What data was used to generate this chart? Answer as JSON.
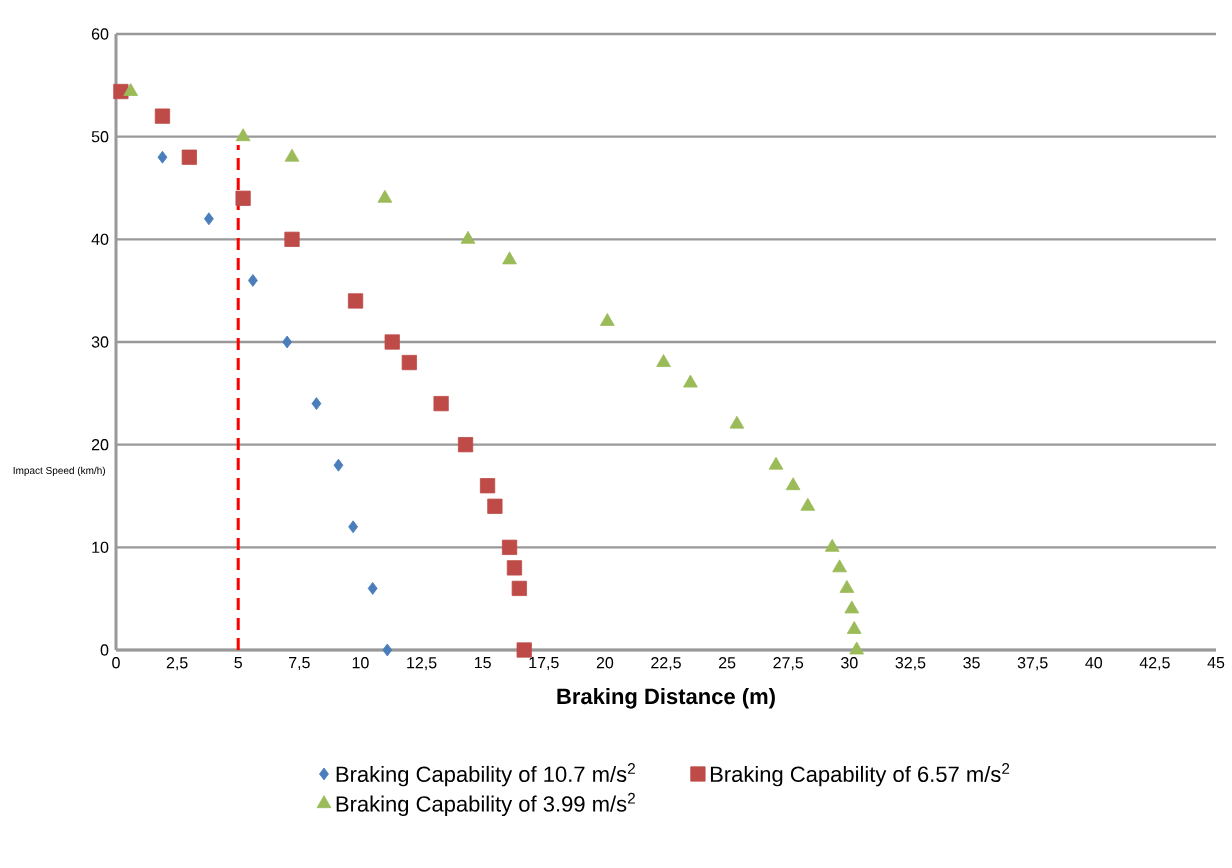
{
  "chart_data": {
    "type": "scatter",
    "xlabel": "Braking Distance (m)",
    "ylabel": "Impact Speed (km/h)",
    "xlim": [
      0,
      45
    ],
    "ylim": [
      0,
      60
    ],
    "xticks": [
      0,
      {
        "value": 2.5,
        "label": "2,5"
      },
      5,
      {
        "value": 7.5,
        "label": "7,5"
      },
      10,
      {
        "value": 12.5,
        "label": "12,5"
      },
      15,
      {
        "value": 17.5,
        "label": "17,5"
      },
      20,
      {
        "value": 22.5,
        "label": "22,5"
      },
      25,
      {
        "value": 27.5,
        "label": "27,5"
      },
      30,
      {
        "value": 32.5,
        "label": "32,5"
      },
      35,
      {
        "value": 37.5,
        "label": "37,5"
      },
      40,
      {
        "value": 42.5,
        "label": "42,5"
      },
      45
    ],
    "yticks": [
      0,
      10,
      20,
      30,
      40,
      50,
      60
    ],
    "grid": "y",
    "legend": "bottom",
    "series": [
      {
        "name": "Braking Capability of 10.7 m/s$^{2}$",
        "color": "#4a7ebb",
        "marker": "diamond",
        "x": [
          1.9,
          3.8,
          5.6,
          7.0,
          8.2,
          9.1,
          9.7,
          10.5,
          11.1
        ],
        "values": [
          48,
          42,
          36,
          30,
          24,
          18,
          12,
          6,
          0
        ]
      },
      {
        "name": "Braking Capability of 6.57 m/s$^{2}$",
        "color": "#be4b48",
        "marker": "square",
        "x": [
          0.2,
          1.9,
          3.0,
          5.2,
          7.2,
          9.8,
          11.3,
          12.0,
          13.3,
          14.3,
          15.2,
          15.5,
          16.1,
          16.3,
          16.5,
          16.7
        ],
        "values": [
          54.4,
          52,
          48,
          44,
          40,
          34,
          30,
          28,
          24,
          20,
          16,
          14,
          10,
          8,
          6,
          0
        ]
      },
      {
        "name": "Braking Capability of 3.99 m/s$^{2}$",
        "color": "#9bbb59",
        "marker": "triangle",
        "x": [
          0.6,
          5.2,
          7.2,
          11.0,
          14.4,
          16.1,
          20.1,
          22.4,
          23.5,
          25.4,
          27.0,
          27.7,
          28.3,
          29.3,
          29.6,
          29.9,
          30.1,
          30.2,
          30.3
        ],
        "values": [
          54.4,
          50,
          48,
          44,
          40,
          38,
          32,
          28,
          26,
          22,
          18,
          16,
          14,
          10,
          8,
          6,
          4,
          2,
          0
        ]
      }
    ],
    "ref_lines": [
      {
        "axis": "x",
        "value": 5,
        "color": "#ff0000",
        "line_style": "dashed"
      }
    ]
  }
}
